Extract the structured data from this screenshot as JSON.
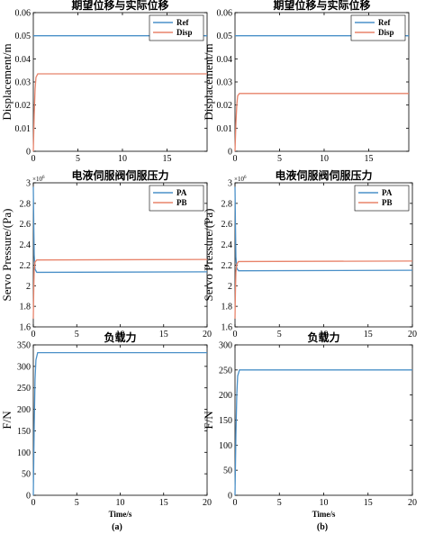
{
  "subfigure_labels": [
    "(a)",
    "(b)"
  ],
  "chart_data": [
    {
      "type": "line",
      "column": "(a)",
      "title": "期望位移与实际位移",
      "xlabel": "",
      "ylabel": "Displacement/m",
      "xlim": [
        0,
        19.5
      ],
      "ylim": [
        0,
        0.06
      ],
      "xticks": [
        0,
        5,
        10,
        15
      ],
      "yticks": [
        0,
        0.01,
        0.02,
        0.03,
        0.04,
        0.05,
        0.06
      ],
      "ytick_labels": [
        "0",
        "0.01",
        "0.02",
        "0.03",
        "0.04",
        "0.05",
        "0.06"
      ],
      "legend": "top-right",
      "series": [
        {
          "name": "Ref",
          "color": "#4a90c8",
          "x": [
            0,
            19.5
          ],
          "y": [
            0.05,
            0.05
          ]
        },
        {
          "name": "Disp",
          "color": "#e8836a",
          "x": [
            0,
            0.1,
            0.2,
            0.3,
            0.5,
            19.5
          ],
          "y": [
            0,
            0.016,
            0.027,
            0.032,
            0.0335,
            0.0335
          ]
        }
      ]
    },
    {
      "type": "line",
      "column": "(b)",
      "title": "期望位移与实际位移",
      "xlabel": "",
      "ylabel": "Displacement/m",
      "xlim": [
        0,
        19.5
      ],
      "ylim": [
        0,
        0.06
      ],
      "xticks": [
        0,
        5,
        10,
        15
      ],
      "yticks": [
        0,
        0.01,
        0.02,
        0.03,
        0.04,
        0.05,
        0.06
      ],
      "ytick_labels": [
        "0",
        "0.01",
        "0.02",
        "0.03",
        "0.04",
        "0.05",
        "0.06"
      ],
      "legend": "top-right",
      "series": [
        {
          "name": "Ref",
          "color": "#4a90c8",
          "x": [
            0,
            19.5
          ],
          "y": [
            0.05,
            0.05
          ]
        },
        {
          "name": "Disp",
          "color": "#e8836a",
          "x": [
            0,
            0.1,
            0.2,
            0.3,
            0.5,
            19.5
          ],
          "y": [
            0,
            0.012,
            0.02,
            0.024,
            0.025,
            0.025
          ]
        }
      ]
    },
    {
      "type": "line",
      "column": "(a)",
      "title": "电液伺服阀伺服压力",
      "xlabel": "",
      "ylabel": "Servo Pressure/(Pa)",
      "exponent": "×10",
      "exponent_power": "6",
      "xlim": [
        0,
        20
      ],
      "ylim": [
        1.6,
        3.0
      ],
      "xticks": [
        0,
        5,
        10,
        15,
        20
      ],
      "yticks": [
        1.6,
        1.8,
        2.0,
        2.2,
        2.4,
        2.6,
        2.8,
        3.0
      ],
      "ytick_labels": [
        "1.6",
        "1.8",
        "2",
        "2.2",
        "2.4",
        "2.6",
        "2.8",
        "3"
      ],
      "legend": "top-right",
      "series": [
        {
          "name": "PA",
          "color": "#4a90c8",
          "x": [
            0,
            0.05,
            0.1,
            0.2,
            0.4,
            0.6,
            20
          ],
          "y": [
            2.96,
            2.62,
            2.3,
            2.16,
            2.13,
            2.13,
            2.135
          ]
        },
        {
          "name": "PB",
          "color": "#e8836a",
          "x": [
            0,
            0.05,
            0.1,
            0.2,
            0.4,
            0.6,
            20
          ],
          "y": [
            1.68,
            1.95,
            2.15,
            2.23,
            2.25,
            2.25,
            2.255
          ]
        }
      ]
    },
    {
      "type": "line",
      "column": "(b)",
      "title": "电液伺服阀伺服压力",
      "xlabel": "",
      "ylabel": "Servo Pressure/(Pa)",
      "exponent": "×10",
      "exponent_power": "6",
      "xlim": [
        0,
        20
      ],
      "ylim": [
        1.6,
        3.0
      ],
      "xticks": [
        0,
        5,
        10,
        15,
        20
      ],
      "yticks": [
        1.6,
        1.8,
        2.0,
        2.2,
        2.4,
        2.6,
        2.8,
        3.0
      ],
      "ytick_labels": [
        "1.6",
        "1.8",
        "2",
        "2.2",
        "2.4",
        "2.6",
        "2.8",
        "3"
      ],
      "legend": "top-right",
      "series": [
        {
          "name": "PA",
          "color": "#4a90c8",
          "x": [
            0,
            0.05,
            0.1,
            0.2,
            0.4,
            0.6,
            20
          ],
          "y": [
            2.96,
            2.6,
            2.28,
            2.17,
            2.145,
            2.145,
            2.15
          ]
        },
        {
          "name": "PB",
          "color": "#e8836a",
          "x": [
            0,
            0.05,
            0.1,
            0.2,
            0.4,
            0.6,
            20
          ],
          "y": [
            1.68,
            1.95,
            2.13,
            2.21,
            2.235,
            2.235,
            2.24
          ]
        }
      ]
    },
    {
      "type": "line",
      "column": "(a)",
      "title": "负载力",
      "xlabel": "Time/s",
      "ylabel": "F/N",
      "xlim": [
        0,
        20
      ],
      "ylim": [
        0,
        350
      ],
      "xticks": [
        0,
        5,
        10,
        15,
        20
      ],
      "yticks": [
        0,
        50,
        100,
        150,
        200,
        250,
        300,
        350
      ],
      "ytick_labels": [
        "0",
        "50",
        "100",
        "150",
        "200",
        "250",
        "300",
        "350"
      ],
      "series": [
        {
          "color": "#4a90c8",
          "x": [
            0,
            0.1,
            0.2,
            0.3,
            0.5,
            20
          ],
          "y": [
            0,
            160,
            270,
            315,
            332,
            332
          ]
        }
      ]
    },
    {
      "type": "line",
      "column": "(b)",
      "title": "负载力",
      "xlabel": "Time/s",
      "ylabel": "F/N",
      "xlim": [
        0,
        20
      ],
      "ylim": [
        0,
        300
      ],
      "xticks": [
        0,
        5,
        10,
        15,
        20
      ],
      "yticks": [
        0,
        50,
        100,
        150,
        200,
        250,
        300
      ],
      "ytick_labels": [
        "0",
        "50",
        "100",
        "150",
        "200",
        "250",
        "300"
      ],
      "series": [
        {
          "color": "#4a90c8",
          "x": [
            0,
            0.1,
            0.2,
            0.3,
            0.5,
            20
          ],
          "y": [
            0,
            120,
            200,
            238,
            250,
            250
          ]
        }
      ]
    }
  ]
}
